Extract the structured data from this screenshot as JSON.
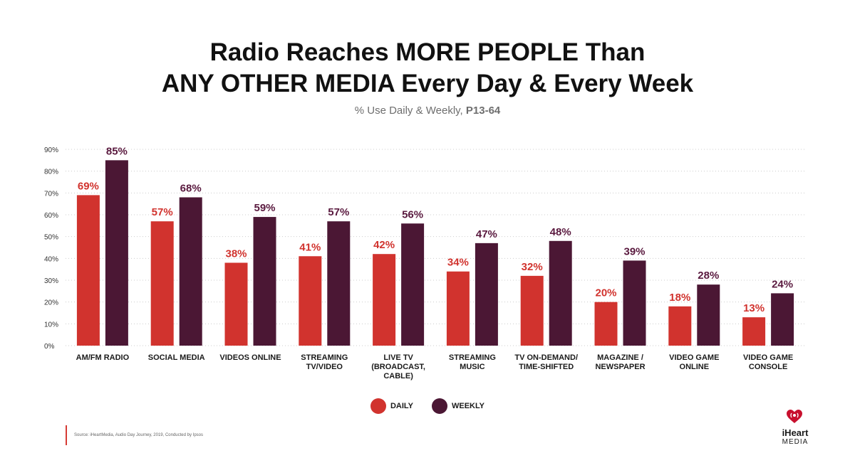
{
  "header": {
    "title_line1": "Radio Reaches MORE PEOPLE Than",
    "title_line2": "ANY OTHER MEDIA Every Day & Every Week",
    "subtitle_prefix": "% Use Daily & Weekly, ",
    "subtitle_bold": "P13-64"
  },
  "chart_data": {
    "type": "bar",
    "categories": [
      [
        "AM/FM RADIO"
      ],
      [
        "SOCIAL MEDIA"
      ],
      [
        "VIDEOS ONLINE"
      ],
      [
        "STREAMING",
        "TV/VIDEO"
      ],
      [
        "LIVE TV",
        "(BROADCAST,",
        "CABLE)"
      ],
      [
        "STREAMING",
        "MUSIC"
      ],
      [
        "TV ON-DEMAND/",
        "TIME-SHIFTED"
      ],
      [
        "MAGAZINE /",
        "NEWSPAPER"
      ],
      [
        "VIDEO GAME",
        "ONLINE"
      ],
      [
        "VIDEO GAME",
        "CONSOLE"
      ]
    ],
    "series": [
      {
        "name": "DAILY",
        "color": "#d1332e",
        "values": [
          69,
          57,
          38,
          41,
          42,
          34,
          32,
          20,
          18,
          13
        ]
      },
      {
        "name": "WEEKLY",
        "color": "#4b1734",
        "values": [
          85,
          68,
          59,
          57,
          56,
          47,
          48,
          39,
          28,
          24
        ]
      }
    ],
    "yticks": [
      "0%",
      "10%",
      "20%",
      "30%",
      "40%",
      "50%",
      "60%",
      "70%",
      "80%",
      "90%"
    ],
    "ylim": [
      0,
      90
    ],
    "grid": true,
    "legend_position": "bottom-center"
  },
  "legend": {
    "daily_label": "DAILY",
    "weekly_label": "WEEKLY",
    "daily_color": "#d1332e",
    "weekly_color": "#4b1734"
  },
  "source": {
    "text": "Source: iHeartMedia, Audio Day Journey, 2019, Conducted by Ipsos"
  },
  "brand": {
    "logo_line1": "iHeart",
    "logo_line2": "MEDIA",
    "icon": "iheart-logo-icon"
  }
}
